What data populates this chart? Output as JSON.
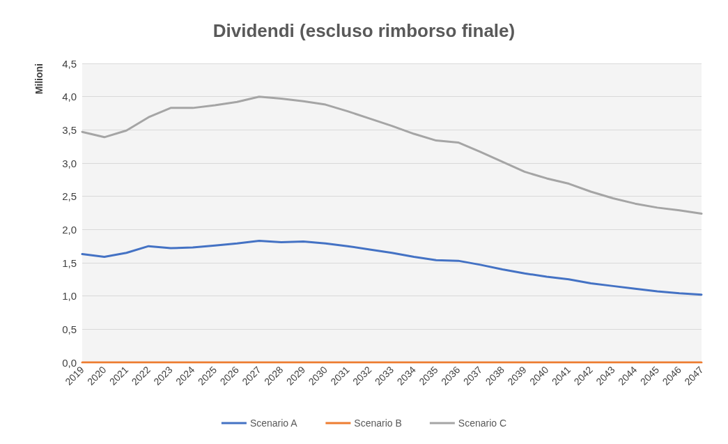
{
  "chart_data": {
    "type": "line",
    "title": "Dividendi (escluso rimborso finale)",
    "ylabel": "Milioni",
    "categories": [
      "2019",
      "2020",
      "2021",
      "2022",
      "2023",
      "2024",
      "2025",
      "2026",
      "2027",
      "2028",
      "2029",
      "2030",
      "2031",
      "2032",
      "2033",
      "2034",
      "2035",
      "2036",
      "2037",
      "2038",
      "2039",
      "2040",
      "2041",
      "2042",
      "2043",
      "2044",
      "2045",
      "2046",
      "2047"
    ],
    "series": [
      {
        "name": "Scenario A",
        "color": "#4472c4",
        "values": [
          1.63,
          1.59,
          1.65,
          1.75,
          1.72,
          1.73,
          1.76,
          1.79,
          1.83,
          1.81,
          1.82,
          1.79,
          1.75,
          1.7,
          1.65,
          1.59,
          1.54,
          1.53,
          1.47,
          1.4,
          1.34,
          1.29,
          1.25,
          1.19,
          1.15,
          1.11,
          1.07,
          1.04,
          1.02
        ]
      },
      {
        "name": "Scenario B",
        "color": "#ed7d31",
        "values": [
          0,
          0,
          0,
          0,
          0,
          0,
          0,
          0,
          0,
          0,
          0,
          0,
          0,
          0,
          0,
          0,
          0,
          0,
          0,
          0,
          0,
          0,
          0,
          0,
          0,
          0,
          0,
          0,
          0
        ]
      },
      {
        "name": "Scenario C",
        "color": "#a5a5a5",
        "values": [
          3.47,
          3.39,
          3.49,
          3.69,
          3.83,
          3.83,
          3.87,
          3.92,
          4.0,
          3.97,
          3.93,
          3.88,
          3.78,
          3.67,
          3.56,
          3.44,
          3.34,
          3.31,
          3.17,
          3.02,
          2.87,
          2.77,
          2.69,
          2.57,
          2.47,
          2.39,
          2.33,
          2.29,
          2.24
        ]
      }
    ],
    "ylim": [
      0,
      4.5
    ],
    "yticks": [
      {
        "value": 0,
        "label": "0,0"
      },
      {
        "value": 0.5,
        "label": "0,5"
      },
      {
        "value": 1,
        "label": "1,0"
      },
      {
        "value": 1.5,
        "label": "1,5"
      },
      {
        "value": 2,
        "label": "2,0"
      },
      {
        "value": 2.5,
        "label": "2,5"
      },
      {
        "value": 3,
        "label": "3,0"
      },
      {
        "value": 3.5,
        "label": "3,5"
      },
      {
        "value": 4,
        "label": "4,0"
      },
      {
        "value": 4.5,
        "label": "4,5"
      }
    ],
    "grid": "y",
    "legend": "bottom",
    "marker": "none",
    "line_style": "solid"
  }
}
